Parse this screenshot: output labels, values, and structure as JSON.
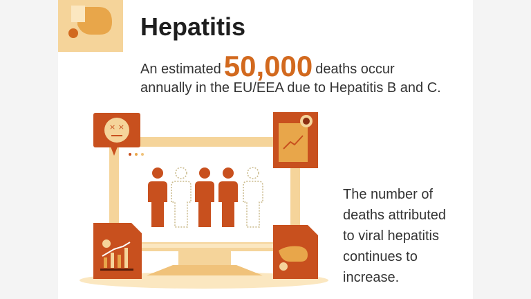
{
  "title": "Hepatitis",
  "headline": {
    "prefix": "An estimated",
    "number": "50,000",
    "suffix": "deaths occur",
    "line2": "annually in the EU/EEA due to Hepatitis B and C."
  },
  "side_text": [
    "The number of",
    "deaths attributed",
    "to viral hepatitis",
    "continues to",
    "increase."
  ],
  "icons": [
    "liver-virus-icon",
    "dead-face-icon",
    "rising-chart-document-icon",
    "skull-bar-chart-icon",
    "liver-document-icon",
    "person-icon"
  ],
  "colors": {
    "accent": "#d2691e",
    "dark_orange": "#c8501e",
    "tan": "#f5d49a",
    "light_tan": "#fbe7c0"
  }
}
